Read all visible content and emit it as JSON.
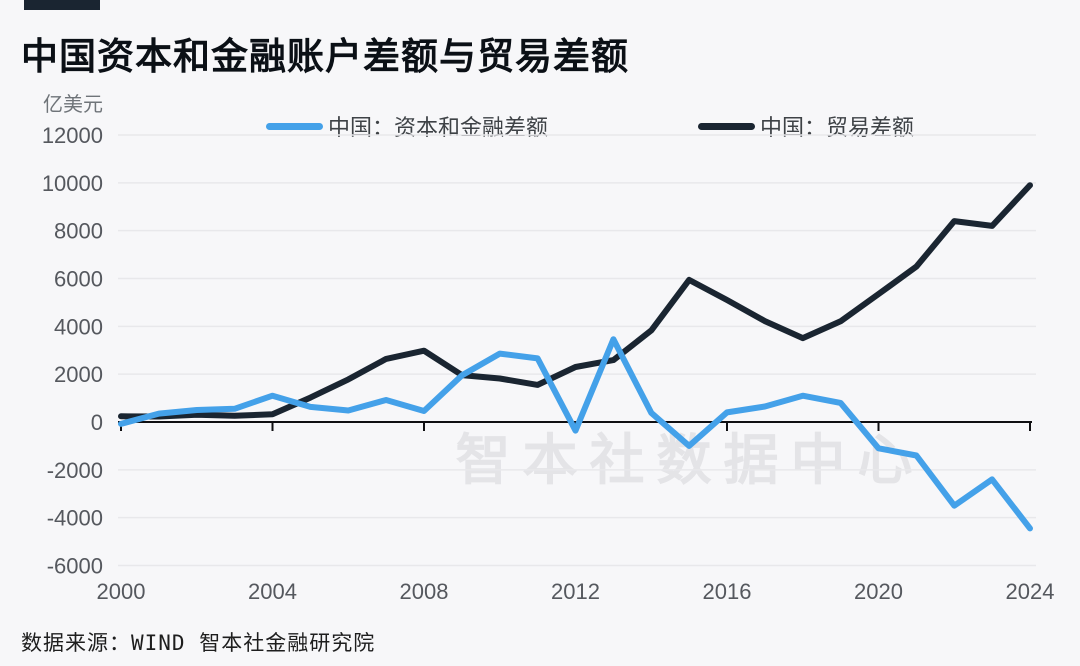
{
  "header": {
    "title": "中国资本和金融账户差额与贸易差额"
  },
  "unit_label": "亿美元",
  "watermark": "智本社数据中心",
  "footer": {
    "source": "数据来源：WIND 智本社金融研究院"
  },
  "colors": {
    "background": "#f7f7f9",
    "capital_line": "#44a1e9",
    "trade_line": "#1a2531",
    "grid": "#e8e8eb",
    "axis": "#0f0f12",
    "tick_label": "#55585e"
  },
  "chart_data": {
    "type": "line",
    "title": "中国资本和金融账户差额与贸易差额",
    "unit": "亿美元",
    "x": [
      2000,
      2001,
      2002,
      2003,
      2004,
      2005,
      2006,
      2007,
      2008,
      2009,
      2010,
      2011,
      2012,
      2013,
      2014,
      2015,
      2016,
      2017,
      2018,
      2019,
      2020,
      2021,
      2022,
      2023,
      2024
    ],
    "series": [
      {
        "name": "中国：资本和金融差额",
        "color": "#44a1e9",
        "values": [
          -80,
          350,
          500,
          550,
          1100,
          630,
          480,
          920,
          460,
          1950,
          2860,
          2660,
          -360,
          3460,
          380,
          -1000,
          400,
          650,
          1100,
          800,
          -1100,
          -1400,
          -3500,
          -2400,
          -4450
        ]
      },
      {
        "name": "中国：贸易差额",
        "color": "#1a2531",
        "values": [
          240,
          230,
          300,
          260,
          320,
          1020,
          1780,
          2640,
          2980,
          1960,
          1820,
          1550,
          2300,
          2590,
          3830,
          5940,
          5100,
          4220,
          3510,
          4210,
          5350,
          6500,
          8400,
          8200,
          9900
        ]
      }
    ],
    "xlim": [
      2000,
      2024
    ],
    "ylim": [
      -6000,
      12000
    ],
    "xticks": [
      2000,
      2004,
      2008,
      2012,
      2016,
      2020,
      2024
    ],
    "yticks": [
      12000,
      10000,
      8000,
      6000,
      4000,
      2000,
      0,
      -2000,
      -4000,
      -6000
    ],
    "grid": "horizontal",
    "legend_position": "top"
  }
}
